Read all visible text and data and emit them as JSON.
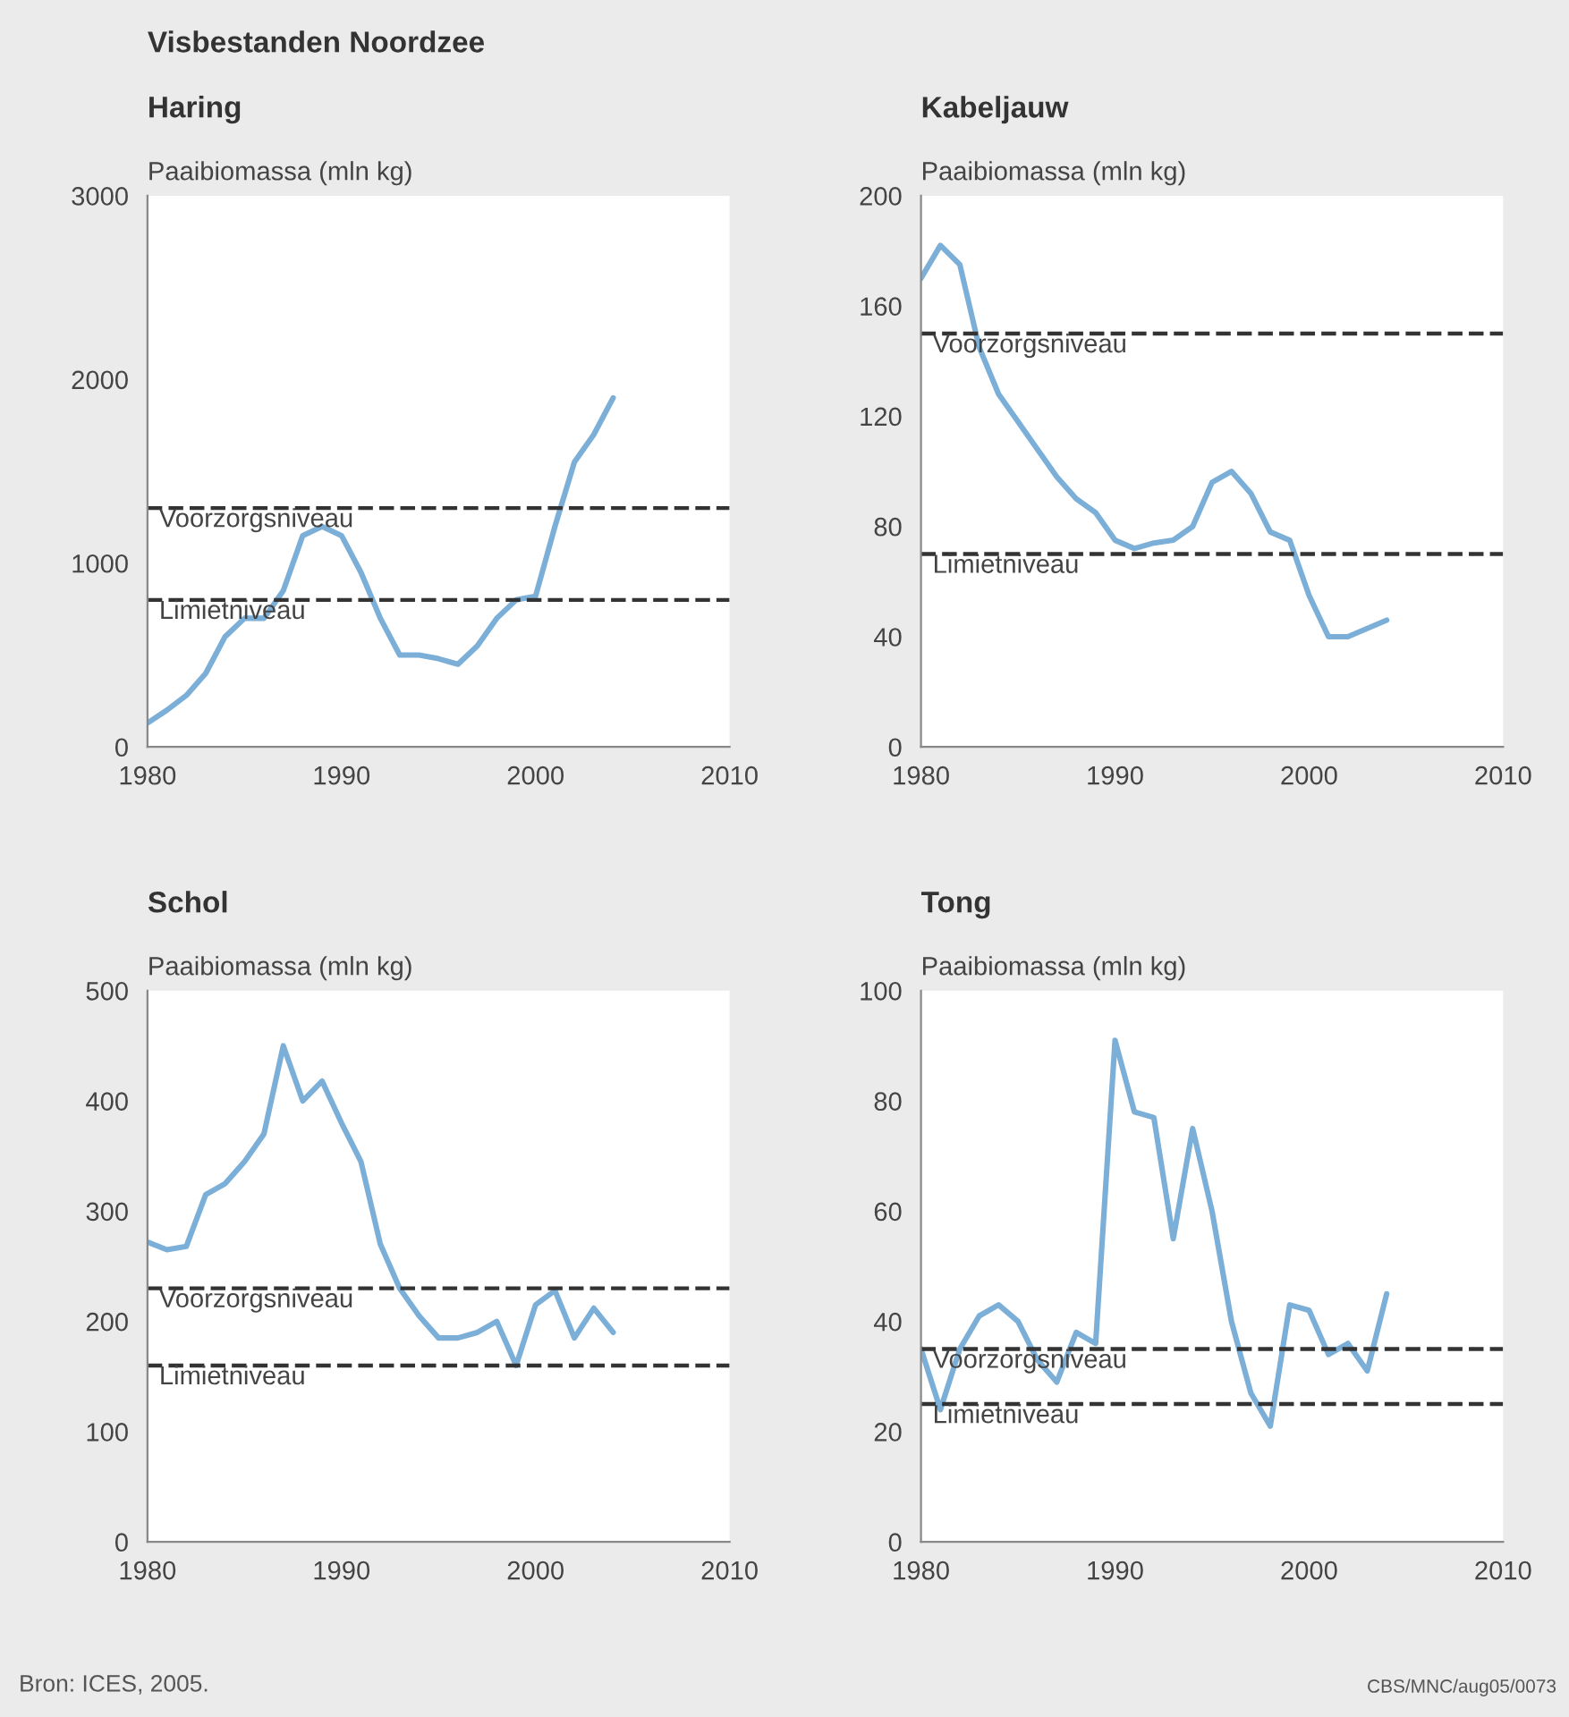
{
  "chart_data": [
    {
      "type": "line",
      "title": "Visbestanden Noordzee",
      "subtitle": "Haring",
      "ylabel": "Paaibiomassa (mln kg)",
      "x": [
        1980,
        1981,
        1982,
        1983,
        1984,
        1985,
        1986,
        1987,
        1988,
        1989,
        1990,
        1991,
        1992,
        1993,
        1994,
        1995,
        1996,
        1997,
        1998,
        1999,
        2000,
        2001,
        2002,
        2003,
        2004
      ],
      "series": [
        {
          "color": "#7bafd8",
          "values": [
            130,
            200,
            280,
            400,
            600,
            700,
            700,
            850,
            1150,
            1200,
            1150,
            950,
            700,
            500,
            500,
            480,
            450,
            550,
            700,
            800,
            820,
            1200,
            1550,
            1700,
            1900
          ]
        }
      ],
      "xlim": [
        1980,
        2010
      ],
      "xticks": [
        1980,
        1990,
        2000,
        2010
      ],
      "ylim": [
        0,
        3000
      ],
      "yticks": [
        0,
        1000,
        2000,
        3000
      ],
      "ref_lines": [
        {
          "axis": "y",
          "value": 1300,
          "label": "Voorzorgsniveau",
          "color": "#333333",
          "line_style": "dashed"
        },
        {
          "axis": "y",
          "value": 800,
          "label": "Limietniveau",
          "color": "#333333",
          "line_style": "dashed"
        }
      ],
      "grid": false,
      "marker": "none",
      "line_style": "solid"
    },
    {
      "type": "line",
      "subtitle": "Kabeljauw",
      "ylabel": "Paaibiomassa (mln kg)",
      "x": [
        1980,
        1981,
        1982,
        1983,
        1984,
        1985,
        1986,
        1987,
        1988,
        1989,
        1990,
        1991,
        1992,
        1993,
        1994,
        1995,
        1996,
        1997,
        1998,
        1999,
        2000,
        2001,
        2002,
        2003,
        2004
      ],
      "series": [
        {
          "color": "#7bafd8",
          "values": [
            170,
            182,
            175,
            145,
            128,
            118,
            108,
            98,
            90,
            85,
            75,
            72,
            74,
            75,
            80,
            96,
            100,
            92,
            78,
            75,
            55,
            40,
            40,
            43,
            46
          ]
        }
      ],
      "xlim": [
        1980,
        2010
      ],
      "xticks": [
        1980,
        1990,
        2000,
        2010
      ],
      "ylim": [
        0,
        200
      ],
      "yticks": [
        0,
        40,
        80,
        120,
        160,
        200
      ],
      "ref_lines": [
        {
          "axis": "y",
          "value": 150,
          "label": "Voorzorgsniveau",
          "color": "#333333",
          "line_style": "dashed"
        },
        {
          "axis": "y",
          "value": 70,
          "label": "Limietniveau",
          "color": "#333333",
          "line_style": "dashed"
        }
      ],
      "grid": false,
      "marker": "none",
      "line_style": "solid"
    },
    {
      "type": "line",
      "subtitle": "Schol",
      "ylabel": "Paaibiomassa (mln kg)",
      "x": [
        1980,
        1981,
        1982,
        1983,
        1984,
        1985,
        1986,
        1987,
        1988,
        1989,
        1990,
        1991,
        1992,
        1993,
        1994,
        1995,
        1996,
        1997,
        1998,
        1999,
        2000,
        2001,
        2002,
        2003,
        2004
      ],
      "series": [
        {
          "color": "#7bafd8",
          "values": [
            272,
            265,
            268,
            315,
            325,
            345,
            370,
            450,
            400,
            418,
            380,
            345,
            270,
            230,
            205,
            185,
            185,
            190,
            200,
            160,
            215,
            228,
            185,
            212,
            190
          ]
        }
      ],
      "xlim": [
        1980,
        2010
      ],
      "xticks": [
        1980,
        1990,
        2000,
        2010
      ],
      "ylim": [
        0,
        500
      ],
      "yticks": [
        0,
        100,
        200,
        300,
        400,
        500
      ],
      "ref_lines": [
        {
          "axis": "y",
          "value": 230,
          "label": "Voorzorgsniveau",
          "color": "#333333",
          "line_style": "dashed"
        },
        {
          "axis": "y",
          "value": 160,
          "label": "Limietniveau",
          "color": "#333333",
          "line_style": "dashed"
        }
      ],
      "annotations": [
        "Bron: ICES, 2005."
      ],
      "grid": false,
      "marker": "none",
      "line_style": "solid"
    },
    {
      "type": "line",
      "subtitle": "Tong",
      "ylabel": "Paaibiomassa (mln kg)",
      "x": [
        1980,
        1981,
        1982,
        1983,
        1984,
        1985,
        1986,
        1987,
        1988,
        1989,
        1990,
        1991,
        1992,
        1993,
        1994,
        1995,
        1996,
        1997,
        1998,
        1999,
        2000,
        2001,
        2002,
        2003,
        2004
      ],
      "series": [
        {
          "color": "#7bafd8",
          "values": [
            35,
            24,
            35,
            41,
            43,
            40,
            33,
            29,
            38,
            36,
            91,
            78,
            77,
            55,
            75,
            60,
            40,
            27,
            21,
            43,
            42,
            34,
            36,
            31,
            45
          ]
        }
      ],
      "xlim": [
        1980,
        2010
      ],
      "xticks": [
        1980,
        1990,
        2000,
        2010
      ],
      "ylim": [
        0,
        100
      ],
      "yticks": [
        0,
        20,
        40,
        60,
        80,
        100
      ],
      "ref_lines": [
        {
          "axis": "y",
          "value": 35,
          "label": "Voorzorgsniveau",
          "color": "#333333",
          "line_style": "dashed"
        },
        {
          "axis": "y",
          "value": 25,
          "label": "Limietniveau",
          "color": "#333333",
          "line_style": "dashed"
        }
      ],
      "annotations": [
        "CBS/MNC/aug05/0073"
      ],
      "grid": false,
      "marker": "none",
      "line_style": "solid"
    }
  ]
}
